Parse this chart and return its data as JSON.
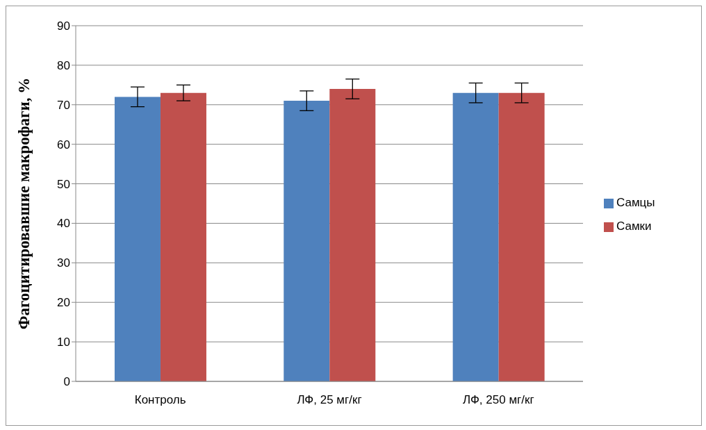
{
  "chart_data": {
    "type": "bar",
    "ylabel": "Фагоцитировавшие  макрофаги, %",
    "categories": [
      "Контроль",
      "ЛФ, 25 мг/кг",
      "ЛФ, 250 мг/кг"
    ],
    "series": [
      {
        "name": "Самцы",
        "color": "#4f81bd",
        "values": [
          72,
          71,
          73
        ],
        "errors": [
          2.5,
          2.5,
          2.5
        ]
      },
      {
        "name": "Самки",
        "color": "#c0504d",
        "values": [
          73,
          74,
          73
        ],
        "errors": [
          2,
          2.5,
          2.5
        ]
      }
    ],
    "ylim": [
      0,
      90
    ],
    "yticks": [
      0,
      10,
      20,
      30,
      40,
      50,
      60,
      70,
      80,
      90
    ],
    "grid": "y",
    "legend": "right"
  }
}
